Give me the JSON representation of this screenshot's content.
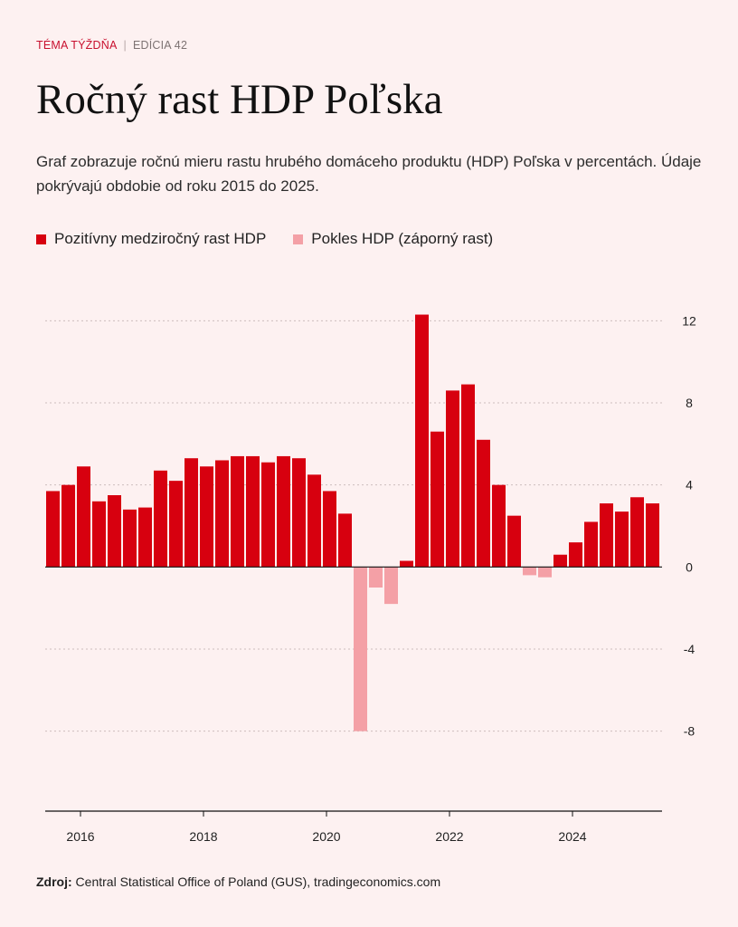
{
  "header": {
    "kicker": "TÉMA TÝŽDŇA",
    "separator": "|",
    "edition": "EDÍCIA 42",
    "title": "Ročný rast HDP Poľska",
    "subtitle": "Graf zobrazuje ročnú mieru rastu hrubého domáceho produktu (HDP) Poľska v percentách. Údaje pokrývajú obdobie od roku 2015 do 2025."
  },
  "colors": {
    "accent": "#c8102e",
    "positive": "#d7000f",
    "negative": "#f4a0a6",
    "background": "#fdf1f1"
  },
  "legend": {
    "positive": "Pozitívny medziročný rast HDP",
    "negative": "Pokles HDP (záporný rast)"
  },
  "chart_data": {
    "type": "bar",
    "title": "Ročný rast HDP Poľska",
    "xlabel": "",
    "ylabel": "",
    "units": "%",
    "ylim": [
      -11.5,
      12.5
    ],
    "yticks": [
      12,
      8,
      4,
      0,
      -4,
      -8
    ],
    "grid": true,
    "legend_position": "top-left",
    "x_tick_labels": [
      "2016",
      "2018",
      "2020",
      "2022",
      "2024"
    ],
    "series": [
      {
        "name": "Ročný rast HDP",
        "categories": [
          "2015 Q3",
          "2015 Q4",
          "2016 Q1",
          "2016 Q2",
          "2016 Q3",
          "2016 Q4",
          "2017 Q1",
          "2017 Q2",
          "2017 Q3",
          "2017 Q4",
          "2018 Q1",
          "2018 Q2",
          "2018 Q3",
          "2018 Q4",
          "2019 Q1",
          "2019 Q2",
          "2019 Q3",
          "2019 Q4",
          "2020 Q1",
          "2020 Q2",
          "2020 Q3",
          "2020 Q4",
          "2021 Q1",
          "2021 Q2",
          "2021 Q3",
          "2021 Q4",
          "2022 Q1",
          "2022 Q2",
          "2022 Q3",
          "2022 Q4",
          "2023 Q1",
          "2023 Q2",
          "2023 Q3",
          "2023 Q4",
          "2024 Q1",
          "2024 Q2",
          "2024 Q3",
          "2024 Q4",
          "2025 Q1",
          "2025 Q2"
        ],
        "values": [
          3.7,
          4.0,
          4.9,
          3.2,
          3.5,
          2.8,
          2.9,
          4.7,
          4.2,
          5.3,
          4.9,
          5.2,
          5.4,
          5.4,
          5.1,
          5.4,
          5.3,
          4.5,
          3.7,
          2.6,
          -8.0,
          -1.0,
          -1.8,
          0.3,
          12.3,
          6.6,
          8.6,
          8.9,
          6.2,
          4.0,
          2.5,
          -0.4,
          -0.5,
          0.6,
          1.2,
          2.2,
          3.1,
          2.7,
          3.4,
          3.1
        ]
      }
    ]
  },
  "footer": {
    "label": "Zdroj:",
    "text": "Central Statistical Office of Poland (GUS), tradingeconomics.com"
  }
}
